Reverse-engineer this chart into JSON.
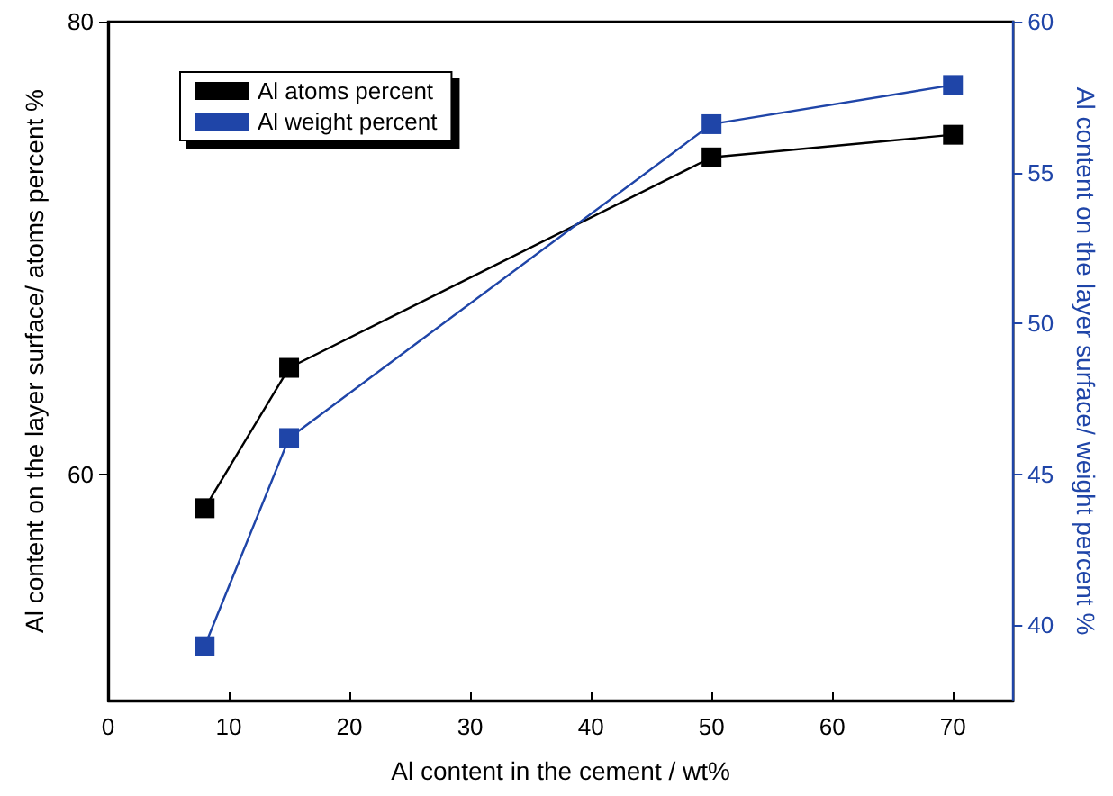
{
  "chart_data": {
    "type": "line",
    "xlabel": "Al content in the cement / wt%",
    "ylabel": "Al content on the layer surface/ atoms percent %",
    "y2label": "Al content on the layer surface/ weight percent %",
    "x": [
      8,
      15,
      50,
      70
    ],
    "xlim": [
      0,
      75
    ],
    "xticks": [
      0,
      10,
      20,
      30,
      40,
      50,
      60,
      70
    ],
    "ylim": [
      50,
      80
    ],
    "yticks": [
      60,
      80
    ],
    "y2lim": [
      37.5,
      60
    ],
    "y2ticks": [
      40,
      45,
      50,
      55,
      60
    ],
    "series": [
      {
        "name": "Al atoms percent",
        "color": "#000000",
        "values": [
          58.5,
          64.7,
          74.0,
          75.0
        ]
      },
      {
        "name": "Al weight percent",
        "color": "#1f45a8",
        "values": [
          39.3,
          46.2,
          56.6,
          57.9
        ],
        "axis": "y2"
      }
    ],
    "marker": "square",
    "line_style": "solid",
    "grid": false,
    "legend": "top left"
  }
}
